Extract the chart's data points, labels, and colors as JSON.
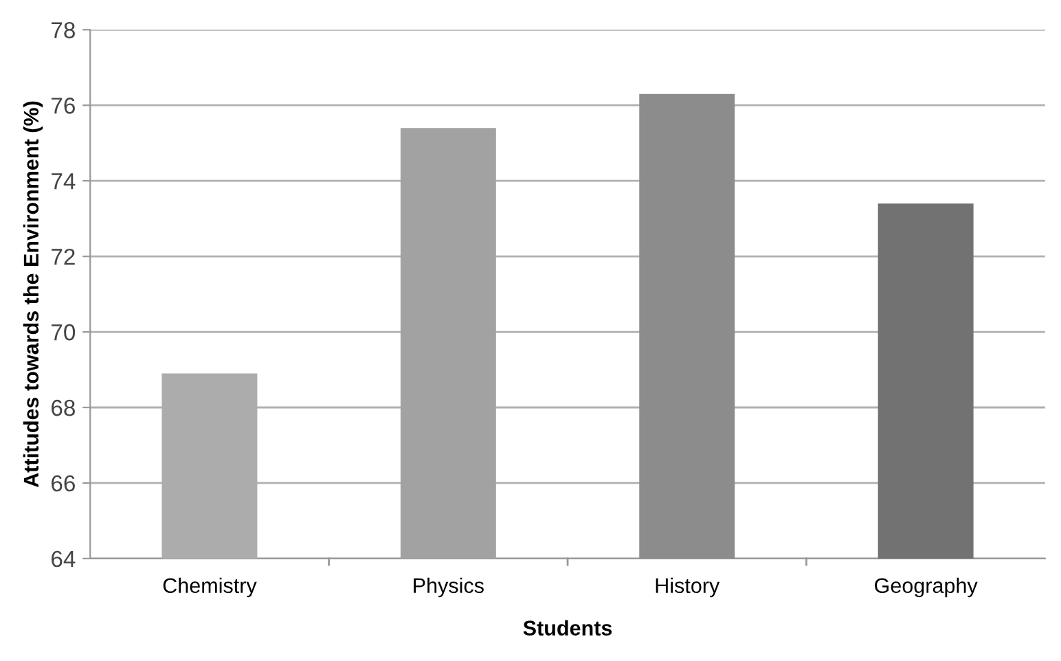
{
  "chart_data": {
    "type": "bar",
    "xlabel": "Students",
    "ylabel": "Attitudes towards the Environment (%)",
    "categories": [
      "Chemistry",
      "Physics",
      "History",
      "Geography"
    ],
    "values": [
      68.9,
      75.4,
      76.3,
      73.4
    ],
    "colors": [
      "#acacac",
      "#a2a2a2",
      "#8c8c8c",
      "#727272"
    ],
    "ylim": [
      64,
      78
    ],
    "yticks": [
      64,
      66,
      68,
      70,
      72,
      74,
      76,
      78
    ],
    "grid": "y"
  }
}
